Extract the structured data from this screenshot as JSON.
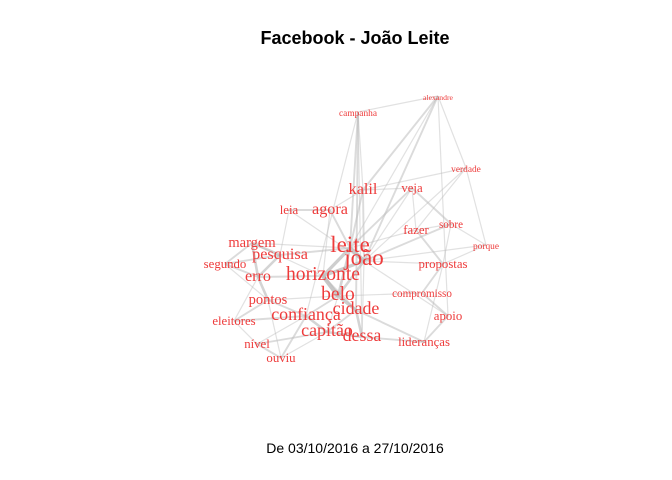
{
  "title": "Facebook - João Leite",
  "subtitle": "De 03/10/2016 a 27/10/2016",
  "colors": {
    "node_label": "#ee3b3b",
    "edge": "#bdbdbd",
    "background": "#ffffff"
  },
  "nodes": [
    {
      "id": "alexandre",
      "label": "alexandre",
      "weight": 1
    },
    {
      "id": "campanha",
      "label": "campanha",
      "weight": 2
    },
    {
      "id": "verdade",
      "label": "verdade",
      "weight": 2
    },
    {
      "id": "kalil",
      "label": "kalil",
      "weight": 6
    },
    {
      "id": "veja",
      "label": "veja",
      "weight": 4
    },
    {
      "id": "leia",
      "label": "leia",
      "weight": 4
    },
    {
      "id": "agora",
      "label": "agora",
      "weight": 6
    },
    {
      "id": "sobre",
      "label": "sobre",
      "weight": 3
    },
    {
      "id": "fazer",
      "label": "fazer",
      "weight": 4
    },
    {
      "id": "porque",
      "label": "porque",
      "weight": 2
    },
    {
      "id": "margem",
      "label": "margem",
      "weight": 5
    },
    {
      "id": "leite",
      "label": "leite",
      "weight": 10
    },
    {
      "id": "joao",
      "label": "joão",
      "weight": 10
    },
    {
      "id": "pesquisa",
      "label": "pesquisa",
      "weight": 6
    },
    {
      "id": "segundo",
      "label": "segundo",
      "weight": 4
    },
    {
      "id": "propostas",
      "label": "propostas",
      "weight": 4
    },
    {
      "id": "horizonte",
      "label": "horizonte",
      "weight": 8
    },
    {
      "id": "erro",
      "label": "erro",
      "weight": 6
    },
    {
      "id": "belo",
      "label": "belo",
      "weight": 8
    },
    {
      "id": "compromisso",
      "label": "compromisso",
      "weight": 3
    },
    {
      "id": "pontos",
      "label": "pontos",
      "weight": 5
    },
    {
      "id": "cidade",
      "label": "cidade",
      "weight": 7
    },
    {
      "id": "confianca",
      "label": "confiança",
      "weight": 7
    },
    {
      "id": "apoio",
      "label": "apoio",
      "weight": 4
    },
    {
      "id": "eleitores",
      "label": "eleitores",
      "weight": 4
    },
    {
      "id": "capitao",
      "label": "capitão",
      "weight": 7
    },
    {
      "id": "dessa",
      "label": "dessa",
      "weight": 7
    },
    {
      "id": "nivel",
      "label": "nível",
      "weight": 4
    },
    {
      "id": "liderancas",
      "label": "lideranças",
      "weight": 4
    },
    {
      "id": "ouviu",
      "label": "ouviu",
      "weight": 4
    }
  ],
  "edges": [
    [
      "leite",
      "joao",
      5
    ],
    [
      "horizonte",
      "belo",
      5
    ],
    [
      "leite",
      "horizonte",
      4
    ],
    [
      "joao",
      "horizonte",
      4
    ],
    [
      "belo",
      "cidade",
      4
    ],
    [
      "leite",
      "belo",
      3
    ],
    [
      "joao",
      "belo",
      3
    ],
    [
      "cidade",
      "dessa",
      3
    ],
    [
      "confianca",
      "capitao",
      3
    ],
    [
      "capitao",
      "dessa",
      3
    ],
    [
      "pontos",
      "erro",
      3
    ],
    [
      "margem",
      "pesquisa",
      3
    ],
    [
      "pesquisa",
      "erro",
      3
    ],
    [
      "margem",
      "erro",
      3
    ],
    [
      "kalil",
      "leite",
      2
    ],
    [
      "kalil",
      "joao",
      2
    ],
    [
      "agora",
      "leite",
      2
    ],
    [
      "leia",
      "agora",
      2
    ],
    [
      "campanha",
      "leite",
      2
    ],
    [
      "campanha",
      "cidade",
      2
    ],
    [
      "alexandre",
      "kalil",
      2
    ],
    [
      "alexandre",
      "joao",
      2
    ],
    [
      "alexandre",
      "apoio",
      1
    ],
    [
      "alexandre",
      "verdade",
      1
    ],
    [
      "alexandre",
      "campanha",
      1
    ],
    [
      "verdade",
      "joao",
      1
    ],
    [
      "verdade",
      "kalil",
      1
    ],
    [
      "verdade",
      "porque",
      1
    ],
    [
      "veja",
      "sobre",
      2
    ],
    [
      "veja",
      "leite",
      2
    ],
    [
      "sobre",
      "joao",
      2
    ],
    [
      "fazer",
      "propostas",
      2
    ],
    [
      "fazer",
      "leite",
      1
    ],
    [
      "porque",
      "joao",
      1
    ],
    [
      "porque",
      "sobre",
      1
    ],
    [
      "propostas",
      "compromisso",
      2
    ],
    [
      "compromisso",
      "apoio",
      2
    ],
    [
      "apoio",
      "liderancas",
      2
    ],
    [
      "liderancas",
      "cidade",
      2
    ],
    [
      "liderancas",
      "dessa",
      2
    ],
    [
      "segundo",
      "pesquisa",
      2
    ],
    [
      "segundo",
      "margem",
      2
    ],
    [
      "segundo",
      "erro",
      2
    ],
    [
      "eleitores",
      "pontos",
      2
    ],
    [
      "eleitores",
      "confianca",
      2
    ],
    [
      "nivel",
      "ouviu",
      2
    ],
    [
      "nivel",
      "capitao",
      2
    ],
    [
      "ouviu",
      "confianca",
      2
    ],
    [
      "ouviu",
      "pontos",
      1
    ],
    [
      "eleitores",
      "nivel",
      1
    ],
    [
      "pontos",
      "confianca",
      2
    ],
    [
      "erro",
      "horizonte",
      2
    ],
    [
      "pesquisa",
      "leite",
      2
    ],
    [
      "margem",
      "leite",
      1
    ],
    [
      "belo",
      "confianca",
      2
    ],
    [
      "cidade",
      "capitao",
      2
    ],
    [
      "horizonte",
      "cidade",
      2
    ],
    [
      "kalil",
      "agora",
      1
    ],
    [
      "kalil",
      "veja",
      1
    ],
    [
      "leia",
      "joao",
      1
    ],
    [
      "campanha",
      "kalil",
      1
    ],
    [
      "campanha",
      "confianca",
      1
    ],
    [
      "veja",
      "fazer",
      1
    ],
    [
      "fazer",
      "sobre",
      1
    ],
    [
      "propostas",
      "joao",
      1
    ],
    [
      "compromisso",
      "belo",
      1
    ],
    [
      "apoio",
      "joao",
      1
    ],
    [
      "dessa",
      "joao",
      1
    ],
    [
      "ouviu",
      "capitao",
      1
    ],
    [
      "nivel",
      "confianca",
      1
    ],
    [
      "segundo",
      "pontos",
      1
    ],
    [
      "eleitores",
      "erro",
      1
    ],
    [
      "pontos",
      "belo",
      1
    ],
    [
      "capitao",
      "belo",
      1
    ],
    [
      "liderancas",
      "propostas",
      1
    ],
    [
      "verdade",
      "fazer",
      1
    ],
    [
      "porque",
      "propostas",
      1
    ],
    [
      "leia",
      "pesquisa",
      1
    ],
    [
      "agora",
      "horizonte",
      1
    ],
    [
      "margem",
      "horizonte",
      1
    ],
    [
      "campanha",
      "dessa",
      1
    ],
    [
      "alexandre",
      "leite",
      1
    ],
    [
      "veja",
      "joao",
      1
    ],
    [
      "sobre",
      "propostas",
      1
    ]
  ]
}
